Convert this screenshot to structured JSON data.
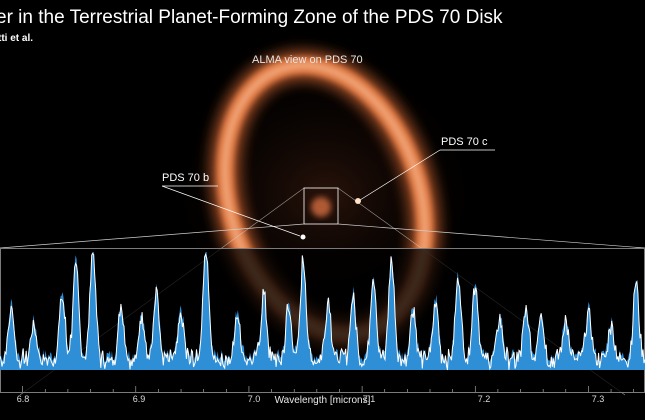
{
  "title": "er in the Terrestrial Planet-Forming Zone of the PDS 70 Disk",
  "subtitle": "tti et al.",
  "image_label": "ALMA view on PDS 70",
  "planet_b_label": "PDS 70 b",
  "planet_c_label": "PDS 70 c",
  "colors": {
    "disk": "#e98a55",
    "spectrum_fill": "#2f8fd6",
    "model_line": "#ffffff",
    "background": "#000000"
  },
  "chart_data": {
    "type": "area",
    "xlabel": "Wavelength [microns]",
    "xticks": [
      "6.8",
      "6.9",
      "7.0",
      "7.1",
      "7.2",
      "7.3"
    ],
    "xlim": [
      6.78,
      7.35
    ],
    "baseline": 0,
    "peaks": [
      {
        "x": 6.79,
        "y": 0.45
      },
      {
        "x": 6.81,
        "y": 0.3
      },
      {
        "x": 6.835,
        "y": 0.55
      },
      {
        "x": 6.847,
        "y": 0.8
      },
      {
        "x": 6.862,
        "y": 0.95
      },
      {
        "x": 6.887,
        "y": 0.45
      },
      {
        "x": 6.905,
        "y": 0.35
      },
      {
        "x": 6.918,
        "y": 0.6
      },
      {
        "x": 6.94,
        "y": 0.4
      },
      {
        "x": 6.962,
        "y": 1.0
      },
      {
        "x": 6.99,
        "y": 0.4
      },
      {
        "x": 7.013,
        "y": 0.55
      },
      {
        "x": 7.035,
        "y": 0.45
      },
      {
        "x": 7.048,
        "y": 0.85
      },
      {
        "x": 7.07,
        "y": 0.5
      },
      {
        "x": 7.092,
        "y": 0.55
      },
      {
        "x": 7.11,
        "y": 0.7
      },
      {
        "x": 7.126,
        "y": 0.85
      },
      {
        "x": 7.145,
        "y": 0.45
      },
      {
        "x": 7.165,
        "y": 0.5
      },
      {
        "x": 7.185,
        "y": 0.7
      },
      {
        "x": 7.2,
        "y": 0.65
      },
      {
        "x": 7.222,
        "y": 0.35
      },
      {
        "x": 7.245,
        "y": 0.4
      },
      {
        "x": 7.258,
        "y": 0.4
      },
      {
        "x": 7.28,
        "y": 0.35
      },
      {
        "x": 7.3,
        "y": 0.4
      },
      {
        "x": 7.32,
        "y": 0.3
      },
      {
        "x": 7.342,
        "y": 0.65
      }
    ]
  }
}
